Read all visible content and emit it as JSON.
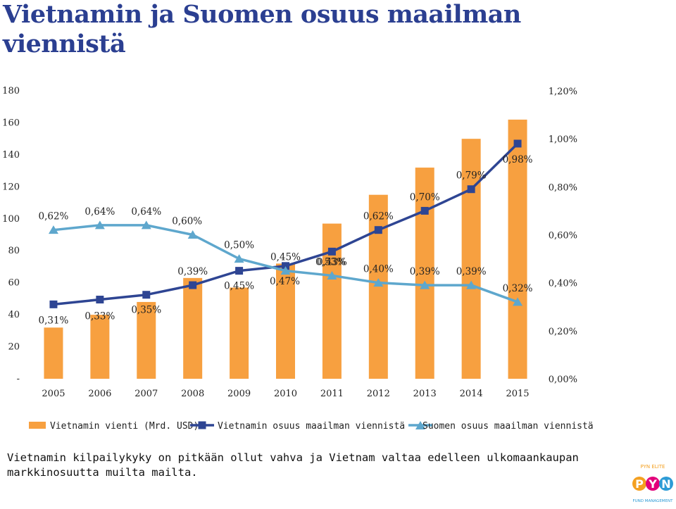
{
  "title": "Vietnamin ja Suomen osuus maailman viennistä",
  "chart_data": {
    "type": "bar+line",
    "categories": [
      "2005",
      "2006",
      "2007",
      "2008",
      "2009",
      "2010",
      "2011",
      "2012",
      "2013",
      "2014",
      "2015"
    ],
    "bar_series": {
      "name": "Vietnamin vienti (Mrd. USD)",
      "values": [
        32,
        40,
        48,
        63,
        57,
        72,
        97,
        115,
        132,
        150,
        162
      ],
      "color": "#f7a040"
    },
    "line_series": [
      {
        "name": "Vietnamin osuus maailman viennistä",
        "values": [
          0.31,
          0.33,
          0.35,
          0.39,
          0.45,
          0.47,
          0.53,
          0.62,
          0.7,
          0.79,
          0.98
        ],
        "labels": [
          "0,31%",
          "0,33%",
          "0,35%",
          "0,39%",
          "0,45%",
          "0,47%",
          "0,53%",
          "0,62%",
          "0,70%",
          "0,79%",
          "0,98%"
        ],
        "color": "#2e4593",
        "marker": "square"
      },
      {
        "name": "Suomen osuus maailman viennistä",
        "values": [
          0.62,
          0.64,
          0.64,
          0.6,
          0.5,
          0.45,
          0.43,
          0.4,
          0.39,
          0.39,
          0.32
        ],
        "labels": [
          "0,62%",
          "0,64%",
          "0,64%",
          "0,60%",
          "0,50%",
          "0,45%",
          "0,43%",
          "0,40%",
          "0,39%",
          "0,39%",
          "0,32%"
        ],
        "color": "#5ea7cd",
        "marker": "triangle"
      }
    ],
    "y_left": {
      "min": 0,
      "max": 180,
      "ticks": [
        "-",
        "20",
        "40",
        "60",
        "80",
        "100",
        "120",
        "140",
        "160",
        "180"
      ]
    },
    "y_right": {
      "min": 0,
      "max": 1.2,
      "ticks": [
        "0,00%",
        "0,20%",
        "0,40%",
        "0,60%",
        "0,80%",
        "1,00%",
        "1,20%"
      ]
    },
    "legend_position": "bottom",
    "grid": false
  },
  "caption": "Vietnamin kilpailykyky on pitkään ollut vahva ja Vietnam valtaa edelleen ulkomaankaupan markkinosuutta muilta mailta.",
  "logo": {
    "text_top": "PYN ELITE",
    "letters": [
      "P",
      "Y",
      "N"
    ],
    "text_bottom": "FUND MANAGEMENT",
    "colors": [
      "#f4a020",
      "#e2007a",
      "#2c9bd6"
    ]
  }
}
